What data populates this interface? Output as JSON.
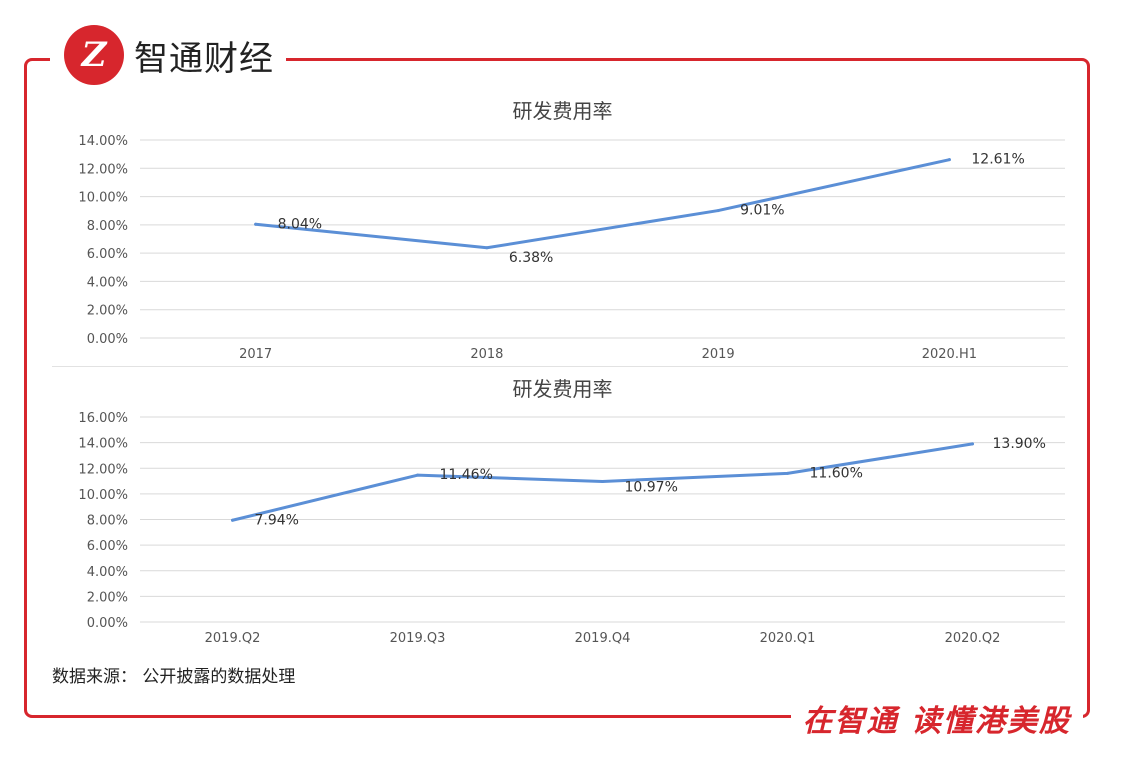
{
  "brand": {
    "logo_glyph": "Z",
    "name": "智通财经"
  },
  "slogan": "在智通 读懂港美股",
  "source_note": "数据来源： 公开披露的数据处理",
  "accent_color": "#d7262d",
  "line_color": "#5b8fd6",
  "chart_data": [
    {
      "type": "line",
      "title": "研发费用率",
      "categories": [
        "2017",
        "2018",
        "2019",
        "2020.H1"
      ],
      "series": [
        {
          "values": [
            8.04,
            6.38,
            9.01,
            12.61
          ]
        }
      ],
      "data_labels": [
        "8.04%",
        "6.38%",
        "9.01%",
        "12.61%"
      ],
      "y_ticks": [
        "0.00%",
        "2.00%",
        "4.00%",
        "6.00%",
        "8.00%",
        "10.00%",
        "12.00%",
        "14.00%"
      ],
      "ylim": [
        0,
        14
      ],
      "grid": true,
      "legend": "none"
    },
    {
      "type": "line",
      "title": "研发费用率",
      "categories": [
        "2019.Q2",
        "2019.Q3",
        "2019.Q4",
        "2020.Q1",
        "2020.Q2"
      ],
      "series": [
        {
          "values": [
            7.94,
            11.46,
            10.97,
            11.6,
            13.9
          ]
        }
      ],
      "data_labels": [
        "7.94%",
        "11.46%",
        "10.97%",
        "11.60%",
        "13.90%"
      ],
      "y_ticks": [
        "0.00%",
        "2.00%",
        "4.00%",
        "6.00%",
        "8.00%",
        "10.00%",
        "12.00%",
        "14.00%",
        "16.00%"
      ],
      "ylim": [
        0,
        16
      ],
      "grid": true,
      "legend": "none"
    }
  ]
}
